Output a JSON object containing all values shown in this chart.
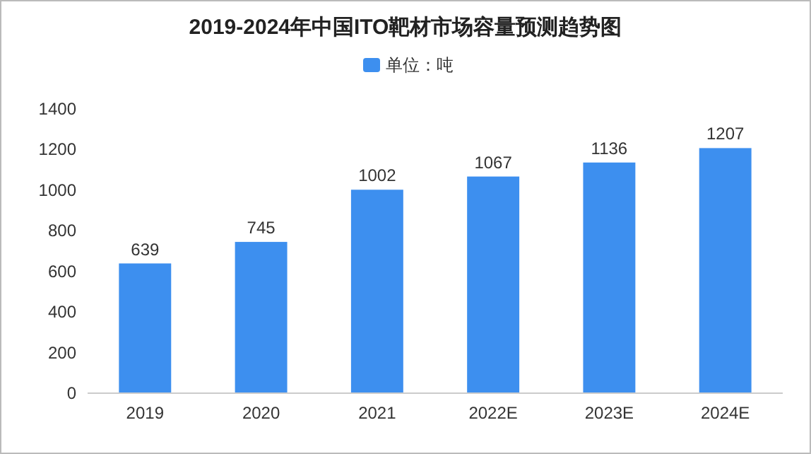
{
  "chart_data": {
    "type": "bar",
    "title": "2019-2024年中国ITO靶材市场容量预测趋势图",
    "categories": [
      "2019",
      "2020",
      "2021",
      "2022E",
      "2023E",
      "2024E"
    ],
    "series": [
      {
        "name": "单位：吨",
        "color": "#3d8fef",
        "values": [
          639,
          745,
          1002,
          1067,
          1136,
          1207
        ]
      }
    ],
    "ylim": [
      0,
      1400
    ],
    "yticks": [
      0,
      200,
      400,
      600,
      800,
      1000,
      1200,
      1400
    ],
    "data_labels": true,
    "legend": "top",
    "grid": false
  }
}
